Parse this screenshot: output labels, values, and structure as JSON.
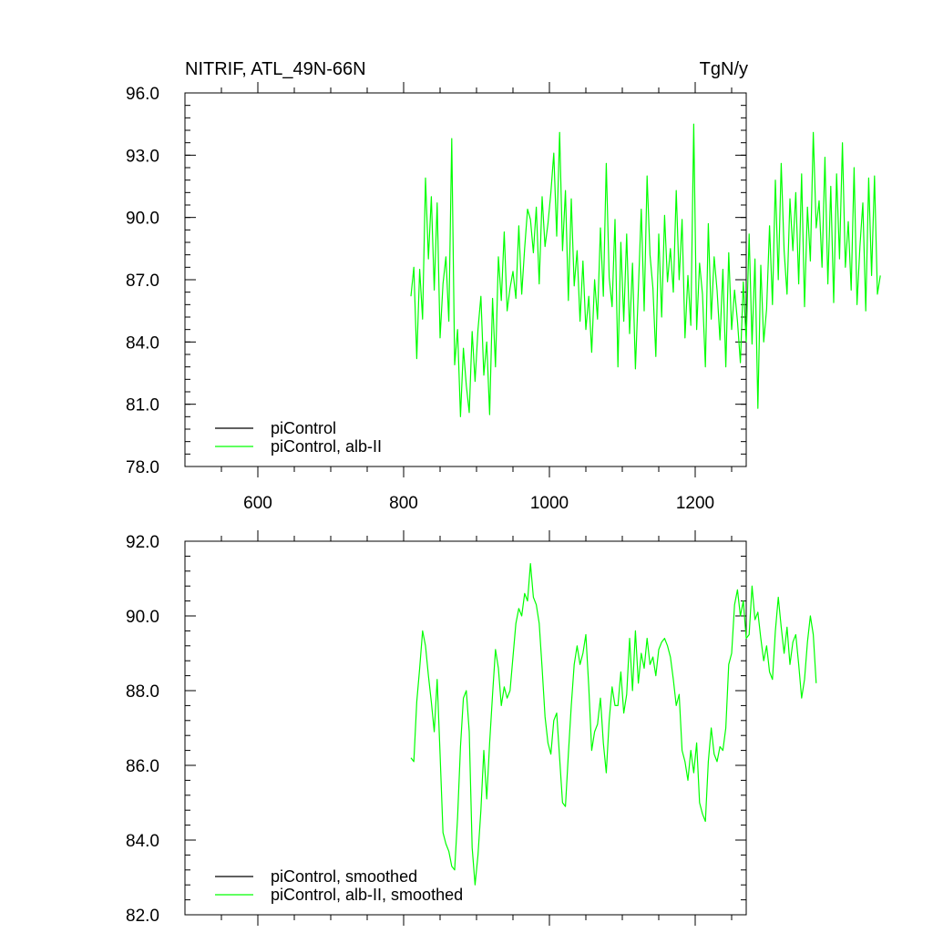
{
  "chart_data": [
    {
      "type": "line",
      "title_left": "NITRIF, ATL_49N-66N",
      "title_right": "TgN/y",
      "xlim": [
        500,
        1270
      ],
      "ylim": [
        78,
        96
      ],
      "x_ticks": [
        "600",
        "800",
        "1000",
        "1200"
      ],
      "x_tick_values": [
        600,
        800,
        1000,
        1200
      ],
      "y_ticks": [
        "96.0",
        "93.0",
        "90.0",
        "87.0",
        "84.0",
        "81.0",
        "78.0"
      ],
      "y_tick_values": [
        96,
        93,
        90,
        87,
        84,
        81,
        78
      ],
      "grid": false,
      "legend_position": "bottom-left",
      "series": [
        {
          "name": "piControl",
          "color": "#000000",
          "x": [],
          "values": []
        },
        {
          "name": "piControl, alb-II",
          "color": "#00ff00",
          "x_start": 810,
          "x_step": 4,
          "values": [
            86.2,
            87.6,
            83.2,
            87.5,
            85.1,
            91.9,
            88.0,
            91.0,
            86.5,
            90.7,
            84.2,
            86.8,
            88.1,
            85.0,
            93.8,
            82.9,
            84.6,
            80.4,
            83.7,
            81.9,
            80.6,
            84.5,
            82.1,
            84.6,
            86.2,
            82.4,
            84.0,
            80.5,
            86.1,
            82.8,
            88.1,
            86.0,
            89.3,
            85.5,
            86.6,
            87.4,
            86.1,
            89.6,
            86.3,
            88.5,
            90.4,
            89.9,
            88.3,
            90.5,
            86.8,
            91.0,
            88.6,
            89.7,
            91.2,
            93.1,
            89.1,
            94.1,
            88.4,
            91.3,
            86.0,
            90.9,
            86.7,
            88.4,
            85.0,
            87.9,
            84.6,
            86.2,
            83.5,
            87.0,
            85.1,
            89.5,
            86.2,
            92.6,
            87.1,
            85.7,
            89.9,
            82.8,
            88.8,
            85.0,
            89.2,
            84.4,
            87.8,
            82.7,
            86.5,
            90.4,
            85.5,
            92.0,
            88.2,
            86.6,
            83.3,
            89.2,
            85.2,
            90.1,
            86.9,
            88.5,
            86.4,
            91.3,
            87.0,
            89.9,
            84.2,
            87.2,
            84.8,
            94.5,
            84.6,
            87.8,
            86.3,
            82.8,
            89.7,
            85.1,
            88.1,
            86.5,
            84.1,
            87.5,
            82.8,
            88.3,
            84.6,
            86.5,
            85.0,
            83.0,
            86.9,
            84.0,
            89.2,
            83.9,
            88.0,
            80.8,
            87.7,
            84.0,
            85.6,
            89.6,
            85.8,
            91.8,
            87.0,
            92.6,
            88.4,
            86.3,
            90.9,
            88.4,
            91.2,
            86.8,
            92.1,
            85.7,
            90.5,
            87.9,
            94.1,
            89.5,
            90.8,
            87.6,
            92.9,
            86.8,
            91.5,
            85.9,
            92.1,
            88.0,
            93.6,
            87.6,
            89.8,
            86.5,
            92.4,
            85.8,
            88.6,
            90.7,
            85.5,
            91.9,
            87.2,
            92.0,
            86.3,
            87.2
          ]
        }
      ],
      "legend": [
        "piControl",
        "piControl, alb-II"
      ]
    },
    {
      "type": "line",
      "xlim": [
        500,
        1270
      ],
      "ylim": [
        82,
        92
      ],
      "y_ticks": [
        "92.0",
        "90.0",
        "88.0",
        "86.0",
        "84.0",
        "82.0"
      ],
      "y_tick_values": [
        92,
        90,
        88,
        86,
        84,
        82
      ],
      "grid": false,
      "legend_position": "bottom-left",
      "series": [
        {
          "name": "piControl, smoothed",
          "color": "#000000",
          "x": [],
          "values": []
        },
        {
          "name": "piControl, alb-II, smoothed",
          "color": "#00ff00",
          "x_start": 810,
          "x_step": 4,
          "values": [
            86.2,
            86.1,
            87.7,
            88.6,
            89.6,
            89.2,
            88.4,
            87.7,
            86.9,
            88.3,
            86.3,
            84.2,
            83.9,
            83.7,
            83.3,
            83.2,
            84.6,
            86.5,
            87.8,
            88.0,
            86.9,
            83.8,
            82.8,
            83.6,
            84.8,
            86.4,
            85.1,
            86.6,
            87.9,
            89.1,
            88.6,
            87.6,
            88.1,
            87.8,
            88.0,
            88.9,
            89.8,
            90.2,
            90.0,
            90.6,
            90.4,
            91.4,
            90.5,
            90.3,
            89.8,
            88.6,
            87.3,
            86.6,
            86.3,
            87.2,
            87.4,
            86.2,
            85.0,
            84.9,
            86.3,
            87.6,
            88.7,
            89.2,
            88.7,
            89.0,
            89.5,
            88.1,
            86.4,
            86.9,
            87.1,
            87.8,
            86.6,
            85.8,
            87.2,
            88.1,
            87.6,
            87.6,
            88.5,
            87.4,
            87.9,
            89.4,
            88.0,
            89.6,
            88.2,
            89.0,
            88.6,
            89.4,
            88.7,
            88.9,
            88.4,
            89.1,
            89.3,
            89.4,
            89.2,
            88.9,
            88.3,
            87.6,
            87.9,
            86.4,
            86.1,
            85.6,
            86.4,
            85.8,
            86.6,
            85.0,
            84.7,
            84.5,
            86.1,
            87.0,
            86.3,
            86.1,
            86.5,
            86.4,
            87.0,
            88.7,
            89.0,
            90.3,
            90.7,
            90.0,
            90.4,
            89.4,
            89.5,
            90.8,
            89.9,
            90.1,
            89.4,
            88.8,
            89.2,
            88.5,
            88.3,
            89.6,
            90.5,
            89.7,
            89.0,
            89.7,
            88.7,
            89.3,
            89.5,
            88.7,
            87.8,
            88.3,
            89.3,
            90.0,
            89.5,
            88.2
          ]
        }
      ],
      "legend": [
        "piControl, smoothed",
        "piControl, alb-II, smoothed"
      ]
    }
  ]
}
